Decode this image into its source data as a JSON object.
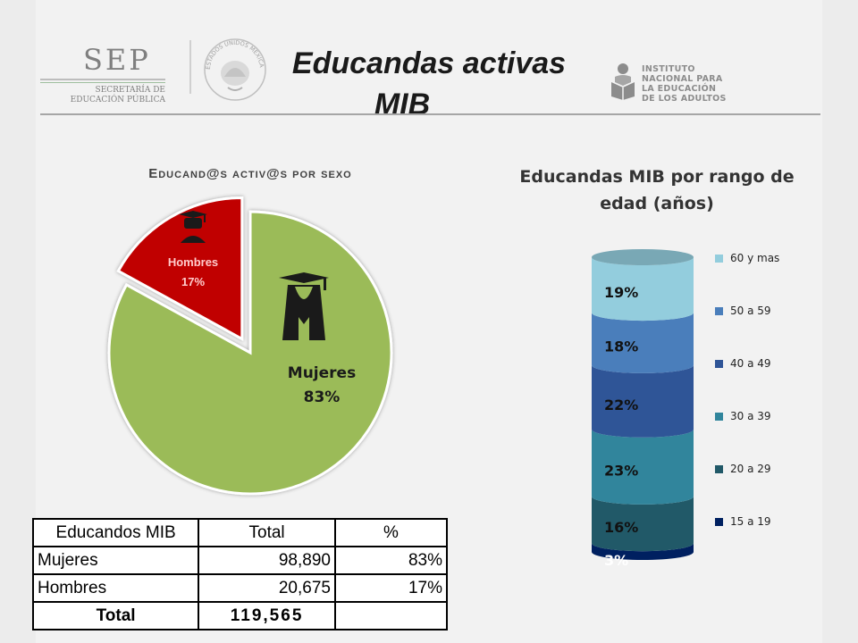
{
  "header": {
    "title_line1": "Educandas activas",
    "title_line2": "MIB",
    "sep_logo": {
      "word": "SEP",
      "sub_line1": "SECRETARÍA DE",
      "sub_line2": "EDUCACIÓN PÚBLICA",
      "icon": "sep-logo-icon"
    },
    "seal": {
      "text": "ESTADOS UNIDOS MEXICANOS",
      "icon": "mexican-seal-icon"
    },
    "inea_logo": {
      "line1": "INSTITUTO",
      "line2": "NACIONAL PARA",
      "line3": "LA EDUCACIÓN",
      "line4": "DE LOS ADULTOS",
      "icon": "inea-reading-person-icon"
    }
  },
  "chart_data": [
    {
      "type": "pie",
      "title": "Educand@s activ@s por sexo",
      "categories": [
        "Mujeres",
        "Hombres"
      ],
      "values": [
        83,
        17
      ],
      "labels": [
        "Mujeres\n83%",
        "Hombres\n17%"
      ],
      "label_text": {
        "mujeres_name": "Mujeres",
        "mujeres_pct": "83%",
        "hombres_name": "Hombres",
        "hombres_pct": "17%"
      },
      "colors": [
        "#9bbb59",
        "#c00000"
      ],
      "exploded": [
        "Hombres"
      ],
      "icons": [
        "female-graduate-icon",
        "male-graduate-icon"
      ]
    },
    {
      "type": "bar",
      "subtype": "stacked-cylinder",
      "title": "Educandas MIB por rango de edad (años)",
      "categories": [
        "Educandas MIB"
      ],
      "series": [
        {
          "name": "15 a 19",
          "values": [
            3
          ],
          "label": "3%",
          "color": "#002060"
        },
        {
          "name": "20 a 29",
          "values": [
            16
          ],
          "label": "16%",
          "color": "#215968"
        },
        {
          "name": "30 a 39",
          "values": [
            23
          ],
          "label": "23%",
          "color": "#31859c"
        },
        {
          "name": "40 a 49",
          "values": [
            22
          ],
          "label": "22%",
          "color": "#2f5597"
        },
        {
          "name": "50 a 59",
          "values": [
            18
          ],
          "label": "18%",
          "color": "#4a7ebb"
        },
        {
          "name": "60 y mas",
          "values": [
            19
          ],
          "label": "19%",
          "color": "#93cddd"
        }
      ],
      "legend": "right"
    }
  ],
  "table": {
    "headers": [
      "Educandos MIB",
      "Total",
      "%"
    ],
    "rows": [
      [
        "Mujeres",
        "98,890",
        "83%"
      ],
      [
        "Hombres",
        "20,675",
        "17%"
      ]
    ],
    "total": [
      "Total",
      "119,565",
      ""
    ]
  }
}
